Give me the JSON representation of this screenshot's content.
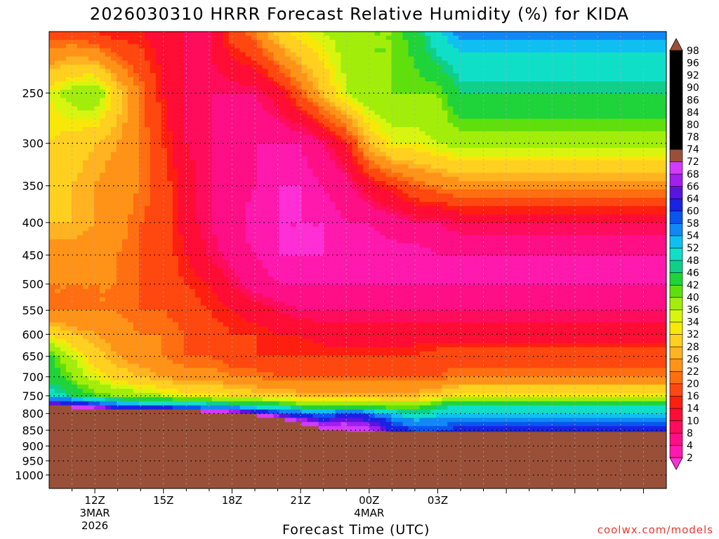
{
  "title": "2026030310 HRRR Forecast Relative Humidity (%) for KIDA",
  "xlabel": "Forecast Time (UTC)",
  "watermark": "coolwx.com/models",
  "chart_data": {
    "type": "heatmap",
    "title": "2026030310 HRRR Forecast Relative Humidity (%) for KIDA",
    "xlabel": "Forecast Time (UTC)",
    "ylabel": "Pressure (hPa)",
    "x_hours": [
      10,
      37
    ],
    "x_ticks": [
      {
        "hour": 12,
        "label": "12Z",
        "sub": [
          "3MAR",
          "2026"
        ]
      },
      {
        "hour": 15,
        "label": "15Z",
        "sub": []
      },
      {
        "hour": 18,
        "label": "18Z",
        "sub": []
      },
      {
        "hour": 21,
        "label": "21Z",
        "sub": []
      },
      {
        "hour": 24,
        "label": "00Z",
        "sub": [
          "4MAR"
        ]
      },
      {
        "hour": 27,
        "label": "03Z",
        "sub": []
      }
    ],
    "y_levels": [
      1000,
      950,
      900,
      850,
      800,
      750,
      700,
      650,
      600,
      550,
      500,
      450,
      400,
      350,
      300,
      250
    ],
    "ylim": [
      1050,
      200
    ],
    "surface_pressure": 855,
    "colorbar": [
      2,
      4,
      8,
      10,
      14,
      16,
      20,
      22,
      26,
      28,
      32,
      34,
      36,
      40,
      42,
      46,
      48,
      52,
      54,
      58,
      60,
      64,
      66,
      68,
      72,
      74,
      78,
      80,
      84,
      86,
      90,
      92,
      96,
      98
    ],
    "colors": [
      "#ff2fd5",
      "#ff19ad",
      "#ff0f86",
      "#ff0c5d",
      "#ff0d35",
      "#ff1f10",
      "#ff4810",
      "#ff6e10",
      "#ff9318",
      "#ffb320",
      "#ffd020",
      "#f7e80a",
      "#d8f510",
      "#a2ee0a",
      "#5fe00d",
      "#1fd33a",
      "#10cf8a",
      "#10dfc8",
      "#10bff2",
      "#1288f6",
      "#0a55f1",
      "#1a22e3",
      "#5a14e0",
      "#a21fec",
      "#d23bfe",
      "#9a5038"
    ],
    "rh_grid": {
      "hours": [
        10,
        11,
        12,
        13,
        14,
        15,
        16,
        17,
        18,
        19,
        20,
        21,
        22,
        23,
        24,
        25,
        26,
        27,
        28
      ],
      "levels": [
        200,
        250,
        300,
        350,
        400,
        450,
        500,
        550,
        600,
        650,
        700,
        750,
        780,
        800,
        820,
        840,
        855
      ],
      "values": [
        [
          18,
          18,
          16,
          14,
          14,
          12,
          10,
          10,
          18,
          22,
          30,
          34,
          36,
          38,
          40,
          40,
          44,
          52,
          55
        ],
        [
          34,
          38,
          40,
          30,
          22,
          14,
          10,
          8,
          8,
          8,
          12,
          20,
          28,
          36,
          40,
          40,
          40,
          40,
          46
        ],
        [
          32,
          30,
          28,
          26,
          22,
          16,
          10,
          8,
          6,
          4,
          4,
          4,
          8,
          14,
          28,
          34,
          34,
          36,
          38
        ],
        [
          30,
          28,
          26,
          24,
          22,
          18,
          12,
          8,
          6,
          4,
          2,
          2,
          4,
          6,
          12,
          16,
          20,
          22,
          24
        ],
        [
          28,
          28,
          26,
          24,
          20,
          18,
          12,
          8,
          6,
          2,
          2,
          2,
          2,
          4,
          4,
          6,
          8,
          8,
          10
        ],
        [
          24,
          24,
          24,
          22,
          20,
          18,
          14,
          10,
          6,
          4,
          2,
          2,
          2,
          2,
          2,
          2,
          2,
          4,
          4
        ],
        [
          22,
          22,
          22,
          22,
          20,
          18,
          16,
          14,
          10,
          6,
          4,
          4,
          4,
          4,
          4,
          4,
          4,
          4,
          4
        ],
        [
          22,
          22,
          22,
          22,
          20,
          20,
          18,
          16,
          14,
          12,
          10,
          8,
          8,
          8,
          8,
          8,
          8,
          8,
          8
        ],
        [
          32,
          28,
          26,
          24,
          22,
          22,
          20,
          18,
          16,
          16,
          14,
          14,
          12,
          12,
          12,
          12,
          12,
          12,
          12
        ],
        [
          44,
          36,
          30,
          26,
          24,
          22,
          20,
          20,
          18,
          16,
          16,
          16,
          16,
          16,
          16,
          16,
          16,
          18,
          18
        ],
        [
          44,
          40,
          34,
          30,
          28,
          26,
          24,
          24,
          22,
          22,
          20,
          20,
          20,
          20,
          20,
          20,
          20,
          20,
          22
        ],
        [
          52,
          46,
          42,
          40,
          38,
          36,
          34,
          34,
          32,
          30,
          30,
          28,
          28,
          28,
          28,
          28,
          28,
          30,
          34
        ],
        [
          72,
          70,
          66,
          60,
          58,
          58,
          56,
          54,
          52,
          50,
          48,
          44,
          42,
          44,
          42,
          40,
          40,
          46,
          50
        ],
        [
          86,
          86,
          84,
          82,
          80,
          80,
          80,
          78,
          74,
          68,
          62,
          58,
          56,
          60,
          58,
          52,
          48,
          50,
          52
        ],
        [
          90,
          92,
          92,
          92,
          90,
          90,
          92,
          90,
          88,
          84,
          76,
          68,
          64,
          66,
          64,
          58,
          54,
          56,
          58
        ],
        [
          92,
          94,
          96,
          96,
          94,
          96,
          96,
          96,
          94,
          92,
          86,
          76,
          70,
          70,
          68,
          62,
          58,
          58,
          60
        ],
        [
          94,
          96,
          96,
          98,
          96,
          98,
          98,
          98,
          96,
          94,
          90,
          80,
          74,
          72,
          70,
          64,
          60,
          60,
          62
        ]
      ]
    }
  }
}
